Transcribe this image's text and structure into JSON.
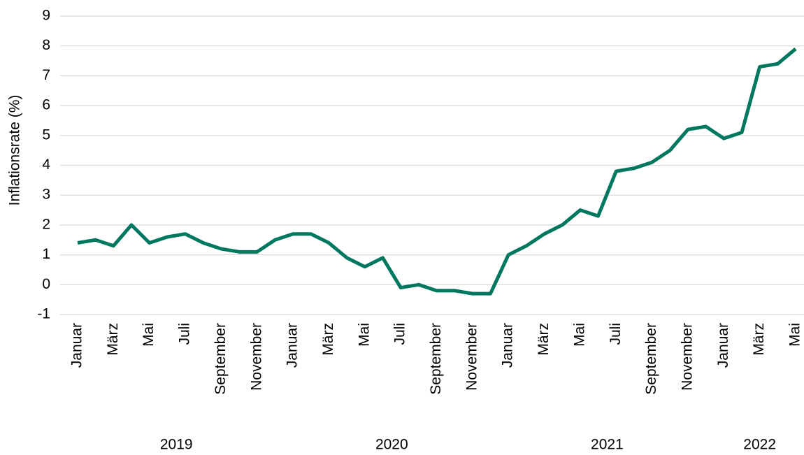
{
  "chart_data": {
    "type": "line",
    "y_label": "Inflationsrate (%)",
    "categories": [
      "Januar",
      null,
      "März",
      null,
      "Mai",
      null,
      "Juli",
      null,
      "September",
      null,
      "November",
      null,
      "Januar",
      null,
      "März",
      null,
      "Mai",
      null,
      "Juli",
      null,
      "September",
      null,
      "November",
      null,
      "Januar",
      null,
      "März",
      null,
      "Mai",
      null,
      "Juli",
      null,
      "September",
      null,
      "November",
      null,
      "Januar",
      null,
      "März",
      null,
      "Mai"
    ],
    "years": [
      "2019",
      "2020",
      "2021",
      "2022"
    ],
    "series": [
      {
        "name": "Inflationsrate",
        "color": "#00775f",
        "values": [
          1.4,
          1.5,
          1.3,
          2.0,
          1.4,
          1.6,
          1.7,
          1.4,
          1.2,
          1.1,
          1.1,
          1.5,
          1.7,
          1.7,
          1.4,
          0.9,
          0.6,
          0.9,
          -0.1,
          0.0,
          -0.2,
          -0.2,
          -0.3,
          -0.3,
          1.0,
          1.3,
          1.7,
          2.0,
          2.5,
          2.3,
          3.8,
          3.9,
          4.1,
          4.5,
          5.2,
          5.3,
          4.9,
          5.1,
          7.3,
          7.4,
          7.9
        ]
      }
    ],
    "ylim": [
      -1,
      9
    ],
    "yticks": [
      -1,
      0,
      1,
      2,
      3,
      4,
      5,
      6,
      7,
      8,
      9
    ],
    "grid": true
  }
}
